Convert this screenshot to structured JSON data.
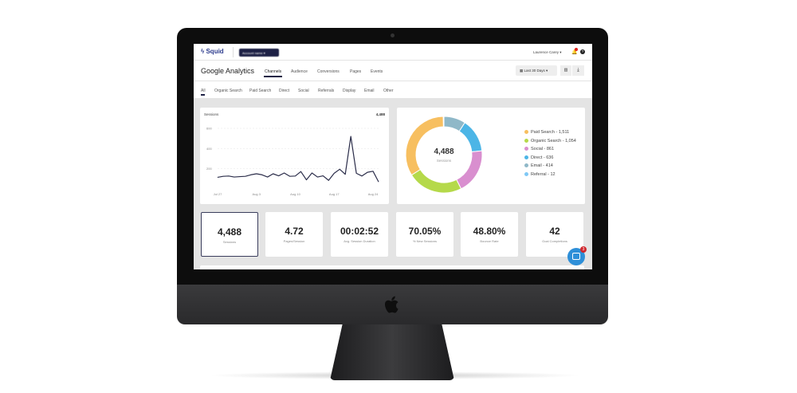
{
  "header": {
    "logo": "Squid",
    "account": "Account name",
    "user": "Laurence Carey",
    "notification_count": "1"
  },
  "page": {
    "title": "Google Analytics",
    "tabs": [
      "Channels",
      "Audience",
      "Conversions",
      "Pages",
      "Events"
    ],
    "active_tab": "Channels",
    "date_range": "Last 30 Days"
  },
  "subtabs": {
    "items": [
      "All",
      "Organic Search",
      "Paid Search",
      "Direct",
      "Social",
      "Referrals",
      "Display",
      "Email",
      "Other"
    ],
    "active": "All"
  },
  "line_card": {
    "title": "Sessions",
    "total": "4,488"
  },
  "donut_card": {
    "total": "4,488",
    "label": "Sessions"
  },
  "kpis": [
    {
      "value": "4,488",
      "label": "Sessions"
    },
    {
      "value": "4.72",
      "label": "Pages/Session"
    },
    {
      "value": "00:02:52",
      "label": "Avg. Session Duration"
    },
    {
      "value": "70.05%",
      "label": "% New Sessions"
    },
    {
      "value": "48.80%",
      "label": "Bounce Rate"
    },
    {
      "value": "42",
      "label": "Goal Completions"
    }
  ],
  "chat": {
    "badge": "3"
  },
  "chart_data": [
    {
      "type": "line",
      "title": "Sessions",
      "ylim": [
        0,
        600
      ],
      "yticks": [
        "600",
        "400",
        "200"
      ],
      "xticks": [
        "Jul 27",
        "Aug 3",
        "Aug 10",
        "Aug 17",
        "Aug 24"
      ],
      "grid": true,
      "color": "#2b2d4a",
      "values": [
        115,
        125,
        128,
        118,
        122,
        125,
        140,
        150,
        140,
        118,
        150,
        130,
        158,
        125,
        128,
        172,
        90,
        158,
        118,
        130,
        85,
        155,
        195,
        145,
        520,
        155,
        128,
        165,
        175,
        70
      ]
    },
    {
      "type": "pie",
      "legend": "right",
      "slices": [
        {
          "name": "Paid Search - 1,511",
          "value": 1511,
          "color": "#f7bf60"
        },
        {
          "name": "Organic Search - 1,054",
          "value": 1054,
          "color": "#b5d94a"
        },
        {
          "name": "Social - 861",
          "value": 861,
          "color": "#d98fcf"
        },
        {
          "name": "Direct - 636",
          "value": 636,
          "color": "#4cb5e6"
        },
        {
          "name": "Email - 414",
          "value": 414,
          "color": "#8fb8c8"
        },
        {
          "name": "Referral - 12",
          "value": 12,
          "color": "#7fc8f5"
        }
      ]
    }
  ]
}
